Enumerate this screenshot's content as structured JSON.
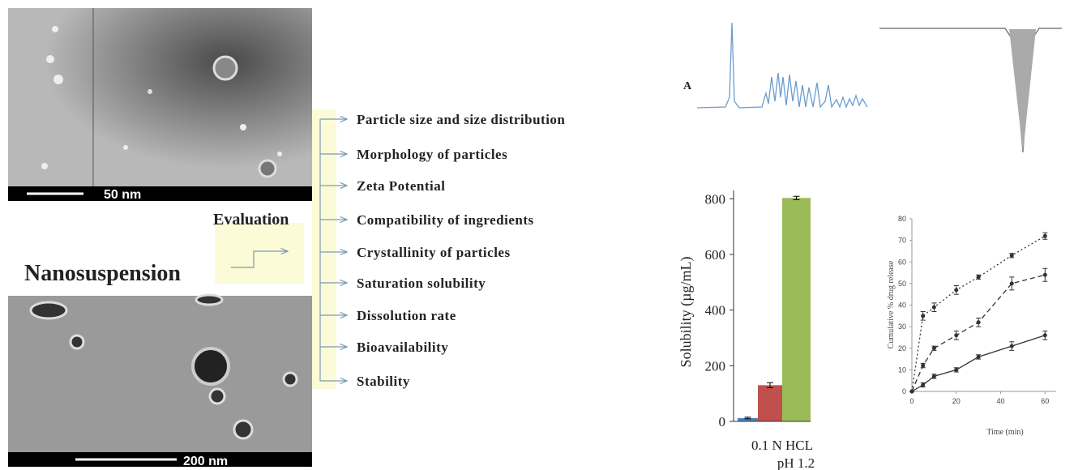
{
  "micrographs": [
    {
      "scale_label": "50 nm"
    },
    {
      "scale_label": "200 nm"
    }
  ],
  "product_label": "Nanosuspension",
  "evaluation": {
    "title": "Evaluation",
    "items": [
      "Particle size and size distribution",
      "Morphology of particles",
      "Zeta Potential",
      "Compatibility of ingredients",
      "Crystallinity of particles",
      "Saturation solubility",
      "Dissolution rate",
      "Bioavailability",
      "Stability"
    ]
  },
  "spectrum_label": "A",
  "charts": [
    {
      "type": "bar",
      "y_label": "Solubility (µg/mL)",
      "category_lines": [
        "0.1 N HCL",
        "pH 1.2"
      ],
      "series": [
        {
          "color": "#4f81bd",
          "values": [
            12
          ],
          "errors": [
            3
          ]
        },
        {
          "color": "#c0504d",
          "values": [
            130
          ],
          "errors": [
            9
          ]
        },
        {
          "color": "#9bbb59",
          "values": [
            803
          ],
          "errors": [
            6
          ]
        }
      ],
      "ylim": [
        0,
        830
      ],
      "yticks": [
        0,
        200,
        400,
        600,
        800
      ]
    },
    {
      "type": "line",
      "x_label": "Time (min)",
      "y_label": "Cumulative % drug release",
      "x": [
        0,
        5,
        10,
        20,
        30,
        45,
        60
      ],
      "series": [
        {
          "color": "#333333",
          "dash": "2,3",
          "values": [
            0,
            35,
            39,
            47,
            53,
            63,
            72
          ],
          "errors": [
            0,
            2,
            2,
            2,
            1,
            1,
            1.5
          ]
        },
        {
          "color": "#333333",
          "dash": "6,4",
          "values": [
            0,
            12,
            20,
            26,
            32,
            50,
            54
          ],
          "errors": [
            0,
            1,
            1,
            2,
            2,
            3,
            3
          ]
        },
        {
          "color": "#333333",
          "dash": "none",
          "values": [
            0,
            3,
            7,
            10,
            16,
            21,
            26
          ],
          "errors": [
            0,
            1,
            1,
            1,
            1,
            2,
            2
          ]
        }
      ],
      "xlim": [
        0,
        65
      ],
      "xticks": [
        0,
        20,
        40,
        60
      ],
      "ylim": [
        0,
        80
      ],
      "yticks": [
        0,
        10,
        20,
        30,
        40,
        50,
        60,
        70,
        80
      ]
    }
  ]
}
